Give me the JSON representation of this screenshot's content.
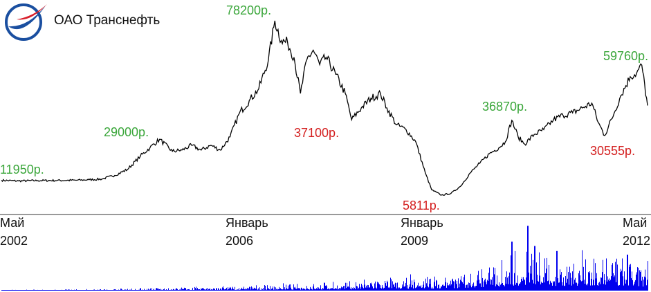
{
  "header": {
    "company_name": "ОАО Транснефть",
    "logo_icon": "transneft-logo-icon"
  },
  "colors": {
    "price_line": "#000000",
    "volume": "#0000ee",
    "high_label": "#3aa63a",
    "low_label": "#d42020",
    "logo_blue": "#1a4fa0",
    "logo_red": "#d81e2a"
  },
  "chart_data": {
    "type": "line",
    "title": "",
    "xlabel": "",
    "ylabel": "",
    "grid": false,
    "ylim": [
      0,
      82000
    ],
    "x_ticks": [
      {
        "month": "Май",
        "year": "2002",
        "t": 2002.33
      },
      {
        "month": "Январь",
        "year": "2006",
        "t": 2006.0
      },
      {
        "month": "Январь",
        "year": "2009",
        "t": 2009.0
      },
      {
        "month": "Май",
        "year": "2012",
        "t": 2012.33
      }
    ],
    "series": [
      {
        "values": [
          [
            2002.33,
            11950
          ],
          [
            2002.6,
            11700
          ],
          [
            2002.9,
            11850
          ],
          [
            2003.2,
            11900
          ],
          [
            2003.5,
            12000
          ],
          [
            2003.7,
            12200
          ],
          [
            2003.9,
            12500
          ],
          [
            2004.1,
            14000
          ],
          [
            2004.3,
            16500
          ],
          [
            2004.5,
            22000
          ],
          [
            2004.65,
            25500
          ],
          [
            2004.8,
            29000
          ],
          [
            2005.0,
            24000
          ],
          [
            2005.15,
            24500
          ],
          [
            2005.3,
            26500
          ],
          [
            2005.45,
            24500
          ],
          [
            2005.6,
            26500
          ],
          [
            2005.75,
            24500
          ],
          [
            2005.9,
            30000
          ],
          [
            2006.05,
            40000
          ],
          [
            2006.2,
            45000
          ],
          [
            2006.35,
            50000
          ],
          [
            2006.5,
            62000
          ],
          [
            2006.6,
            78200
          ],
          [
            2006.7,
            70000
          ],
          [
            2006.8,
            69000
          ],
          [
            2006.9,
            63000
          ],
          [
            2007.0,
            48000
          ],
          [
            2007.1,
            62000
          ],
          [
            2007.2,
            66000
          ],
          [
            2007.3,
            60000
          ],
          [
            2007.4,
            63000
          ],
          [
            2007.55,
            56000
          ],
          [
            2007.7,
            48000
          ],
          [
            2007.8,
            37100
          ],
          [
            2007.95,
            42000
          ],
          [
            2008.1,
            46000
          ],
          [
            2008.25,
            48000
          ],
          [
            2008.35,
            42000
          ],
          [
            2008.5,
            35000
          ],
          [
            2008.65,
            33000
          ],
          [
            2008.8,
            28000
          ],
          [
            2008.95,
            15000
          ],
          [
            2009.05,
            8000
          ],
          [
            2009.2,
            5811
          ],
          [
            2009.35,
            6500
          ],
          [
            2009.5,
            9500
          ],
          [
            2009.65,
            15000
          ],
          [
            2009.8,
            19000
          ],
          [
            2009.95,
            23000
          ],
          [
            2010.1,
            25500
          ],
          [
            2010.2,
            28000
          ],
          [
            2010.3,
            36870
          ],
          [
            2010.4,
            30000
          ],
          [
            2010.5,
            27000
          ],
          [
            2010.65,
            31000
          ],
          [
            2010.8,
            33000
          ],
          [
            2010.95,
            37000
          ],
          [
            2011.1,
            39000
          ],
          [
            2011.25,
            40000
          ],
          [
            2011.4,
            42000
          ],
          [
            2011.55,
            44000
          ],
          [
            2011.65,
            36000
          ],
          [
            2011.75,
            30555
          ],
          [
            2011.9,
            40000
          ],
          [
            2012.0,
            47000
          ],
          [
            2012.15,
            55000
          ],
          [
            2012.25,
            56500
          ],
          [
            2012.33,
            59760
          ],
          [
            2012.42,
            43000
          ]
        ]
      }
    ],
    "annotations": [
      {
        "text": "11950р.",
        "kind": "high",
        "t": 2002.33,
        "v": 11950
      },
      {
        "text": "29000р.",
        "kind": "high",
        "t": 2004.8,
        "v": 29000
      },
      {
        "text": "78200р.",
        "kind": "high",
        "t": 2006.6,
        "v": 78200
      },
      {
        "text": "37100р.",
        "kind": "low",
        "t": 2007.8,
        "v": 37100
      },
      {
        "text": "5811р.",
        "kind": "low",
        "t": 2009.2,
        "v": 5811
      },
      {
        "text": "36870р.",
        "kind": "high",
        "t": 2010.3,
        "v": 36870
      },
      {
        "text": "30555р.",
        "kind": "low",
        "t": 2011.75,
        "v": 30555
      },
      {
        "text": "59760р.",
        "kind": "high",
        "t": 2012.33,
        "v": 59760
      }
    ],
    "volume": {
      "description_values_relative": true,
      "envelope": [
        [
          2002.33,
          0.01
        ],
        [
          2004.0,
          0.02
        ],
        [
          2006.0,
          0.06
        ],
        [
          2007.5,
          0.1
        ],
        [
          2008.5,
          0.16
        ],
        [
          2009.5,
          0.22
        ],
        [
          2010.0,
          0.35
        ],
        [
          2010.5,
          0.48
        ],
        [
          2011.0,
          0.42
        ],
        [
          2011.5,
          0.45
        ],
        [
          2012.0,
          0.4
        ],
        [
          2012.42,
          0.35
        ]
      ],
      "peaks": [
        [
          2010.3,
          0.68
        ],
        [
          2010.55,
          0.9
        ],
        [
          2010.65,
          0.62
        ],
        [
          2011.0,
          0.55
        ],
        [
          2012.1,
          0.5
        ]
      ]
    }
  }
}
